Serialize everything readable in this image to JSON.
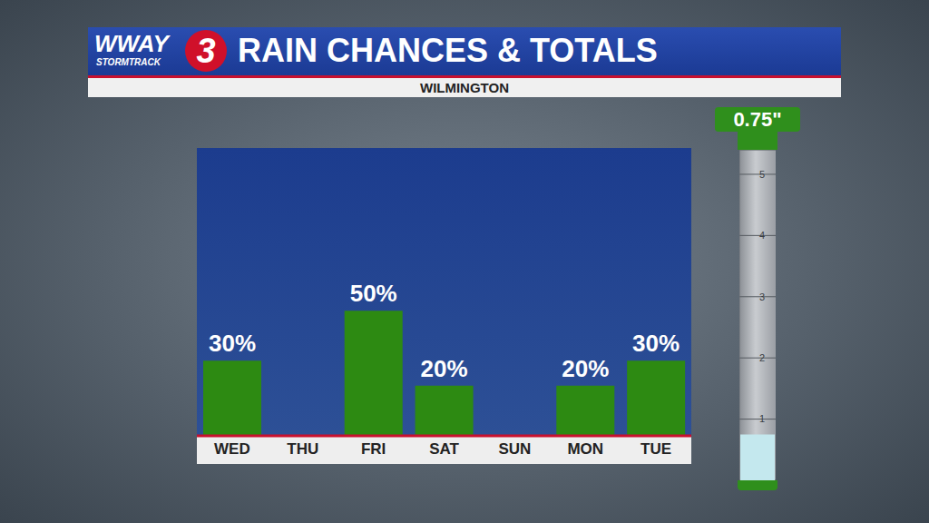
{
  "header": {
    "logo": "WWAY",
    "logo_sub": "STORMTRACK",
    "channel": "3"
  },
  "chart_data": [
    {
      "type": "bar",
      "title": "RAIN CHANCES & TOTALS",
      "subtitle": "WILMINGTON",
      "categories": [
        "WED",
        "THU",
        "FRI",
        "SAT",
        "SUN",
        "MON",
        "TUE"
      ],
      "values": [
        30,
        null,
        50,
        20,
        null,
        20,
        30
      ],
      "value_labels": [
        "30%",
        null,
        "50%",
        "20%",
        null,
        "20%",
        "30%"
      ],
      "data_labels": true,
      "color": "#2d8a12",
      "ylim": [
        0,
        115
      ],
      "yticks": [],
      "tick_labels": "x",
      "grid": false
    },
    {
      "type": "bar",
      "title": "0.75\"",
      "categories": [
        null
      ],
      "values": [
        0.75
      ],
      "color": "#c4e8ee",
      "ylim": [
        0,
        5.4
      ],
      "yticks": [
        1,
        2,
        3,
        4,
        5
      ],
      "grid": true,
      "tick_labels": "y"
    }
  ]
}
